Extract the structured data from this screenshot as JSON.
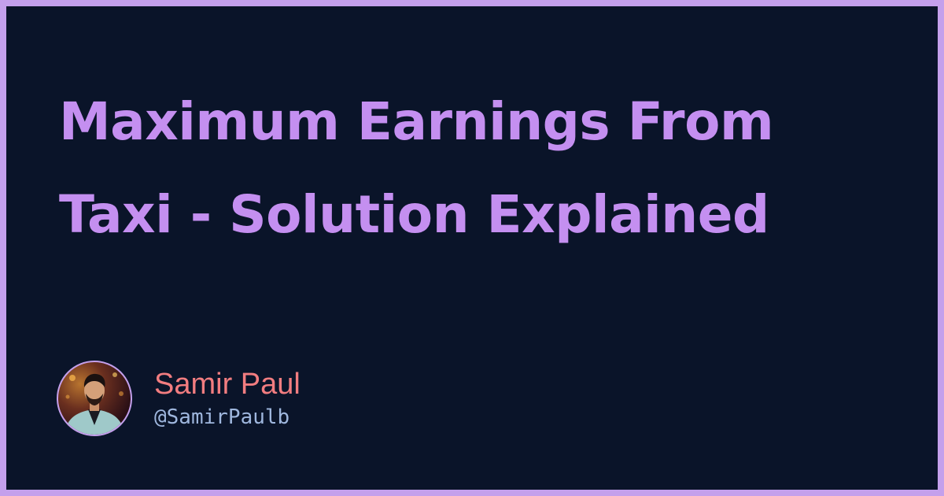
{
  "title_lines": [
    "Maximum Earnings From",
    "Taxi - Solution Explained"
  ],
  "author": {
    "name": "Samir Paul",
    "handle": "@SamirPaulb"
  },
  "colors": {
    "frame": "#c4a0ec",
    "background": "#0a1429",
    "title": "#c48ff0",
    "author_name": "#f27d80",
    "author_handle": "#9fb7de"
  }
}
